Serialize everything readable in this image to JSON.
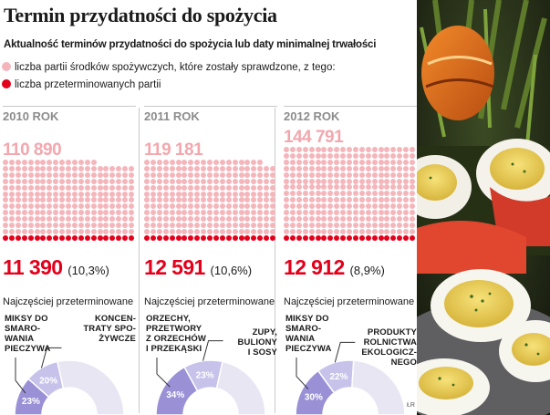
{
  "title": "Termin przydatności do spożycia",
  "subtitle": "Aktualność terminów przydatności do spożycia lub daty minimalnej trwałości",
  "legend": [
    {
      "label": "liczba partii środków spożywczych, które zostały sprawdzone, z tego:",
      "color": "#f4b5bb"
    },
    {
      "label": "liczba przeterminowanych partii",
      "color": "#e3001b"
    }
  ],
  "colors": {
    "checked": "#f4b5bb",
    "expired": "#e3001b",
    "segment_main": "#9a90d6",
    "segment_second": "#c7c2ea",
    "segment_rest": "#e8e6f3"
  },
  "chart_data": [
    {
      "type": "pie",
      "year": "2010 ROK",
      "total_checked": "110 890",
      "expired": "11 390",
      "expired_pct": "(10,3%)",
      "most_expired_label": "Najczęściej przeterminowane",
      "categories": [
        {
          "name": "MIKSY DO\nSMARO-\nWANIA\nPIECZYWA",
          "value": 23,
          "label": "23%"
        },
        {
          "name": "KONCEN-\nTRATY SPO-\nŻYWCZE",
          "value": 20,
          "label": "20%"
        }
      ]
    },
    {
      "type": "pie",
      "year": "2011 ROK",
      "total_checked": "119 181",
      "expired": "12 591",
      "expired_pct": "(10,6%)",
      "most_expired_label": "Najczęściej przeterminowane",
      "categories": [
        {
          "name": "ORZECHY,\nPRZETWORY\nZ ORZECHÓW\nI PRZEKĄSKI",
          "value": 34,
          "label": "34%"
        },
        {
          "name": "ZUPY,\nBULIONY\nI SOSY",
          "value": 23,
          "label": "23%"
        }
      ]
    },
    {
      "type": "pie",
      "year": "2012 ROK",
      "total_checked": "144 791",
      "expired": "12 912",
      "expired_pct": "(8,9%)",
      "most_expired_label": "Najczęściej przeterminowane",
      "categories": [
        {
          "name": "MIKSY DO\nSMARO-\nWANIA\nPIECZYWA",
          "value": 30,
          "label": "30%"
        },
        {
          "name": "PRODUKTY\nROLNICTWA\nEKOLOGICZ-\nNEGO",
          "value": 22,
          "label": "22%"
        }
      ]
    }
  ],
  "credit": "ŁR"
}
